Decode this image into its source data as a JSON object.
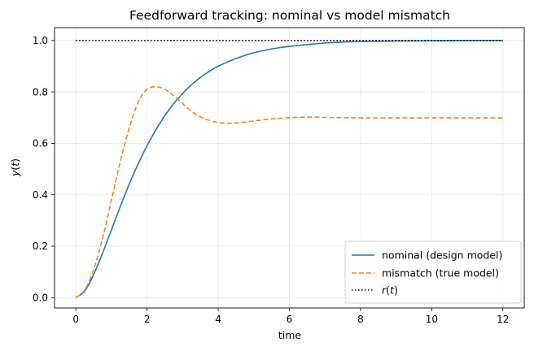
{
  "chart_data": {
    "type": "line",
    "title": "Feedforward tracking: nominal vs model mismatch",
    "xlabel": "time",
    "ylabel_parts": [
      "y",
      "(",
      "t",
      ")"
    ],
    "xlim": [
      -0.6,
      12.6
    ],
    "ylim": [
      -0.04,
      1.05
    ],
    "grid": true,
    "legend_position": "lower-right",
    "xticks": [
      0,
      2,
      4,
      6,
      8,
      10,
      12
    ],
    "xtick_labels": [
      "0",
      "2",
      "4",
      "6",
      "8",
      "10",
      "12"
    ],
    "yticks": [
      0.0,
      0.2,
      0.4,
      0.6,
      0.8,
      1.0
    ],
    "ytick_labels": [
      "0.0",
      "0.2",
      "0.4",
      "0.6",
      "0.8",
      "1.0"
    ],
    "series": [
      {
        "name": "nominal (design model)",
        "color": "#1f77b4",
        "style": "solid",
        "x": [
          0,
          0.25,
          0.5,
          0.75,
          1.0,
          1.25,
          1.5,
          1.75,
          2.0,
          2.25,
          2.5,
          2.75,
          3.0,
          3.25,
          3.5,
          3.75,
          4.0,
          4.5,
          5.0,
          5.5,
          6.0,
          7.0,
          8.0,
          9.0,
          10.0,
          11.0,
          12.0
        ],
        "y": [
          0.0,
          0.026,
          0.09,
          0.173,
          0.264,
          0.355,
          0.442,
          0.52,
          0.591,
          0.653,
          0.708,
          0.755,
          0.794,
          0.828,
          0.856,
          0.88,
          0.9,
          0.93,
          0.952,
          0.967,
          0.977,
          0.99,
          0.996,
          0.998,
          0.999,
          1.0,
          1.0
        ]
      },
      {
        "name": "mismatch (true model)",
        "color": "#ff7f0e",
        "style": "dashed",
        "x": [
          0,
          0.25,
          0.5,
          0.75,
          1.0,
          1.25,
          1.5,
          1.75,
          2.0,
          2.25,
          2.5,
          2.75,
          3.0,
          3.25,
          3.5,
          3.75,
          4.0,
          4.25,
          4.5,
          4.75,
          5.0,
          5.5,
          6.0,
          6.5,
          7.0,
          7.5,
          8.0,
          9.0,
          10.0,
          11.0,
          12.0
        ],
        "y": [
          0.0,
          0.03,
          0.11,
          0.23,
          0.38,
          0.53,
          0.66,
          0.76,
          0.81,
          0.82,
          0.81,
          0.785,
          0.755,
          0.725,
          0.703,
          0.689,
          0.681,
          0.678,
          0.679,
          0.682,
          0.687,
          0.695,
          0.7,
          0.702,
          0.701,
          0.7,
          0.699,
          0.699,
          0.699,
          0.699,
          0.699
        ]
      },
      {
        "name": "r(t)",
        "color": "#000000",
        "style": "dotted",
        "x": [
          0,
          12
        ],
        "y": [
          1.0,
          1.0
        ]
      }
    ],
    "legend_labels": [
      "nominal (design model)",
      "mismatch (true model)"
    ],
    "legend_ref_parts": [
      "r",
      "(",
      "t",
      ")"
    ]
  }
}
